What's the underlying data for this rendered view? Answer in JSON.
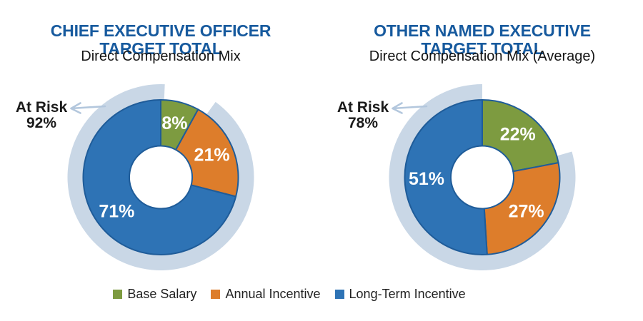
{
  "colors": {
    "title_text": "#175a9e",
    "subtitle_text": "#141414",
    "base_salary": "#7d9b40",
    "annual_incentive": "#dd7d2b",
    "long_term_incentive": "#2e73b5",
    "slice_border": "#1f5c99",
    "at_risk_arc": "#c9d7e6",
    "arrow": "#b3c7dd",
    "slice_label_text": "#ffffff",
    "annotation_text": "#1a1a1a"
  },
  "legend": {
    "position": "bottom-center",
    "items": [
      {
        "label": "Base Salary",
        "color_key": "base_salary"
      },
      {
        "label": "Annual Incentive",
        "color_key": "annual_incentive"
      },
      {
        "label": "Long-Term Incentive",
        "color_key": "long_term_incentive"
      }
    ]
  },
  "chart_data": [
    {
      "type": "pie",
      "subtype": "donut",
      "title": "CHIEF EXECUTIVE OFFICER TARGET TOTAL",
      "title_lines": [
        "CHIEF EXECUTIVE OFFICER",
        "TARGET TOTAL"
      ],
      "subtitle": "Direct Compensation Mix",
      "categories": [
        "Base Salary",
        "Annual Incentive",
        "Long-Term Incentive"
      ],
      "values": [
        8,
        21,
        71
      ],
      "labels": [
        "8%",
        "21%",
        "71%"
      ],
      "color_keys": [
        "base_salary",
        "annual_incentive",
        "long_term_incentive"
      ],
      "start_angle_deg": 0,
      "direction": "clockwise",
      "annotation": {
        "text_line1": "At Risk",
        "text_line2": "92%",
        "value": 92,
        "arc_start_deg": 36,
        "arc_end_deg": 362.5
      }
    },
    {
      "type": "pie",
      "subtype": "donut",
      "title": "OTHER NAMED EXECUTIVE TARGET TOTAL",
      "title_lines": [
        "OTHER NAMED EXECUTIVE",
        "TARGET TOTAL"
      ],
      "subtitle": "Direct Compensation Mix (Average)",
      "categories": [
        "Base Salary",
        "Annual Incentive",
        "Long-Term Incentive"
      ],
      "values": [
        22,
        27,
        51
      ],
      "labels": [
        "22%",
        "27%",
        "51%"
      ],
      "color_keys": [
        "base_salary",
        "annual_incentive",
        "long_term_incentive"
      ],
      "start_angle_deg": 0,
      "direction": "clockwise",
      "annotation": {
        "text_line1": "At Risk",
        "text_line2": "78%",
        "value": 78,
        "arc_start_deg": 74,
        "arc_end_deg": 360
      }
    }
  ]
}
